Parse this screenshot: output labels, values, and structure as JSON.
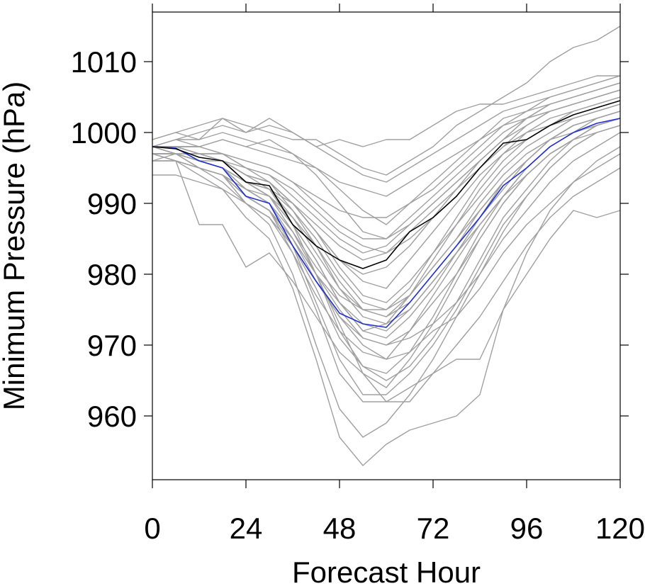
{
  "chart_data": {
    "type": "line",
    "xlabel": "Forecast Hour",
    "ylabel": "Minimum Pressure (hPa)",
    "xlim": [
      0,
      120
    ],
    "ylim": [
      951,
      1017
    ],
    "xticks": [
      0,
      24,
      48,
      72,
      96,
      120
    ],
    "yticks": [
      960,
      970,
      980,
      990,
      1000,
      1010
    ],
    "grid": false,
    "legend": "none",
    "x": [
      0,
      6,
      12,
      18,
      24,
      30,
      36,
      42,
      48,
      54,
      60,
      66,
      72,
      78,
      84,
      90,
      96,
      102,
      108,
      114,
      120
    ],
    "colors": {
      "ensemble": "#a0a0a0",
      "black_series": "#000000",
      "blue_series": "#1f2fd0"
    },
    "series": [
      {
        "color": "#1f2fd0",
        "values": [
          998,
          997.8,
          996,
          995,
          991,
          990,
          984,
          979,
          974.5,
          973,
          972.5,
          976,
          980,
          984,
          988,
          992.5,
          995,
          998,
          1000,
          1001.3,
          1002
        ]
      },
      {
        "color": "#000000",
        "values": [
          998,
          997.7,
          996.5,
          996,
          993,
          992.5,
          987,
          984,
          982,
          980.8,
          982,
          986,
          988,
          991,
          995,
          998.5,
          999,
          1001,
          1002.5,
          1003.5,
          1004.5
        ]
      },
      {
        "color": "#a0a0a0",
        "values": [
          998,
          999,
          998,
          999,
          998,
          997,
          996,
          995,
          993,
          992,
          991,
          993,
          995,
          997,
          999,
          1001,
          1002,
          1003,
          1004,
          1005,
          1006
        ]
      },
      {
        "color": "#a0a0a0",
        "values": [
          999,
          1000,
          999,
          1000,
          999,
          998,
          997,
          995,
          992,
          989,
          987,
          990,
          993,
          996,
          999,
          1002,
          1003,
          1004,
          1005,
          1006,
          1007
        ]
      },
      {
        "color": "#a0a0a0",
        "values": [
          997,
          997,
          996,
          995,
          993,
          992,
          990,
          987,
          984,
          982,
          983,
          986,
          989,
          992,
          995,
          998,
          1000,
          1001,
          1002,
          1003,
          1004
        ]
      },
      {
        "color": "#a0a0a0",
        "values": [
          998,
          998,
          997,
          996,
          994,
          993,
          990,
          986,
          982,
          979,
          978,
          982,
          986,
          990,
          994,
          997,
          999,
          1001,
          1002,
          1003,
          1004
        ]
      },
      {
        "color": "#a0a0a0",
        "values": [
          996,
          997,
          995,
          994,
          991,
          989,
          985,
          980,
          976,
          973,
          972,
          975,
          979,
          983,
          987,
          991,
          994,
          997,
          999,
          1001,
          1002
        ]
      },
      {
        "color": "#a0a0a0",
        "values": [
          998,
          997,
          996,
          995,
          992,
          990,
          986,
          981,
          977,
          975,
          974,
          977,
          981,
          985,
          989,
          993,
          996,
          999,
          1001,
          1002,
          1003
        ]
      },
      {
        "color": "#a0a0a0",
        "values": [
          997,
          996,
          995,
          993,
          990,
          988,
          983,
          977,
          972,
          969,
          968,
          972,
          977,
          982,
          987,
          991,
          995,
          998,
          1000,
          1002,
          1003
        ]
      },
      {
        "color": "#a0a0a0",
        "values": [
          998,
          998,
          997,
          997,
          995,
          994,
          991,
          988,
          985,
          983,
          984,
          987,
          990,
          993,
          996,
          999,
          1001,
          1003,
          1004,
          1005,
          1006
        ]
      },
      {
        "color": "#a0a0a0",
        "values": [
          997,
          996,
          987,
          987,
          981,
          983,
          979,
          974,
          969,
          966,
          964,
          968,
          973,
          979,
          985,
          990,
          994,
          997,
          999,
          1000,
          1001
        ]
      },
      {
        "color": "#a0a0a0",
        "values": [
          998,
          997,
          995,
          994,
          990,
          987,
          980,
          970,
          961,
          957,
          959,
          963,
          968,
          974,
          980,
          986,
          991,
          995,
          998,
          1000,
          1001
        ]
      },
      {
        "color": "#a0a0a0",
        "values": [
          997,
          996,
          994,
          992,
          988,
          985,
          978,
          968,
          957,
          953,
          956,
          958,
          959,
          960,
          963,
          975,
          983,
          989,
          993,
          996,
          998
        ]
      },
      {
        "color": "#a0a0a0",
        "values": [
          996,
          996,
          995,
          994,
          992,
          990,
          985,
          979,
          974,
          970,
          968,
          969,
          972,
          974,
          978,
          983,
          987,
          990,
          993,
          995,
          997
        ]
      },
      {
        "color": "#a0a0a0",
        "values": [
          998,
          998,
          997,
          996,
          993,
          991,
          986,
          980,
          973,
          966,
          962,
          962,
          966,
          970,
          974,
          979,
          984,
          988,
          991,
          993,
          995
        ]
      },
      {
        "color": "#a0a0a0",
        "values": [
          997,
          997,
          996,
          995,
          993,
          992,
          989,
          985,
          980,
          976,
          975,
          977,
          981,
          985,
          990,
          994,
          997,
          999,
          1000,
          1001,
          1002
        ]
      },
      {
        "color": "#a0a0a0",
        "values": [
          998,
          999,
          1000,
          1001,
          1000,
          1001,
          1000,
          998,
          996,
          994,
          993,
          995,
          997,
          999,
          1001,
          1003,
          1004,
          1005,
          1006,
          1007,
          1008
        ]
      },
      {
        "color": "#a0a0a0",
        "values": [
          998,
          999,
          999,
          1002,
          1000,
          1002,
          1000,
          998,
          999,
          998,
          999,
          999,
          1001,
          1003,
          1004,
          1004,
          1005,
          1006,
          1007,
          1008,
          1008
        ]
      },
      {
        "color": "#a0a0a0",
        "values": [
          998,
          998,
          998,
          999,
          998,
          999,
          997,
          994,
          990,
          986,
          985,
          988,
          991,
          994,
          997,
          1000,
          1002,
          1004,
          1005,
          1006,
          1007
        ]
      },
      {
        "color": "#a0a0a0",
        "values": [
          997,
          997,
          996,
          996,
          994,
          993,
          990,
          986,
          981,
          977,
          976,
          979,
          983,
          987,
          991,
          995,
          998,
          1000,
          1002,
          1003,
          1004
        ]
      },
      {
        "color": "#a0a0a0",
        "values": [
          999,
          1000,
          1001,
          1002,
          1001,
          1000,
          999,
          999,
          997,
          995,
          994,
          996,
          998,
          1001,
          1003,
          1005,
          1007,
          1010,
          1012,
          1013,
          1015
        ]
      },
      {
        "color": "#a0a0a0",
        "values": [
          997,
          996,
          995,
          994,
          991,
          989,
          984,
          978,
          971,
          967,
          966,
          969,
          974,
          980,
          986,
          991,
          995,
          998,
          1000,
          1001,
          1002
        ]
      },
      {
        "color": "#a0a0a0",
        "values": [
          998,
          997,
          996,
          995,
          993,
          991,
          987,
          982,
          976,
          972,
          973,
          977,
          982,
          987,
          992,
          996,
          999,
          1001,
          1003,
          1004,
          1005
        ]
      },
      {
        "color": "#a0a0a0",
        "values": [
          996,
          996,
          995,
          994,
          992,
          991,
          988,
          984,
          979,
          975,
          974,
          976,
          980,
          984,
          989,
          993,
          996,
          999,
          1001,
          1002,
          1003
        ]
      },
      {
        "color": "#a0a0a0",
        "values": [
          997,
          997,
          997,
          996,
          995,
          994,
          992,
          989,
          986,
          984,
          983,
          985,
          988,
          991,
          995,
          998,
          1001,
          1003,
          1004,
          1005,
          1006
        ]
      },
      {
        "color": "#a0a0a0",
        "values": [
          998,
          998,
          997,
          997,
          995,
          993,
          989,
          984,
          978,
          974,
          973,
          975,
          979,
          983,
          988,
          992,
          996,
          999,
          1001,
          1002,
          1003
        ]
      },
      {
        "color": "#a0a0a0",
        "values": [
          998,
          997,
          996,
          995,
          992,
          990,
          984,
          976,
          968,
          963,
          963,
          966,
          970,
          975,
          981,
          987,
          991,
          995,
          998,
          1000,
          1001
        ]
      },
      {
        "color": "#a0a0a0",
        "values": [
          997,
          997,
          996,
          995,
          993,
          991,
          987,
          982,
          976,
          972,
          971,
          974,
          978,
          983,
          988,
          993,
          996,
          999,
          1001,
          1002,
          1003
        ]
      },
      {
        "color": "#a0a0a0",
        "values": [
          998,
          998,
          998,
          997,
          996,
          995,
          993,
          990,
          987,
          985,
          985,
          987,
          990,
          993,
          996,
          999,
          1002,
          1004,
          1005,
          1006,
          1007
        ]
      },
      {
        "color": "#a0a0a0",
        "values": [
          997,
          996,
          995,
          994,
          991,
          989,
          985,
          980,
          975,
          971,
          970,
          972,
          976,
          980,
          985,
          990,
          994,
          997,
          999,
          1001,
          1002
        ]
      },
      {
        "color": "#a0a0a0",
        "values": [
          997,
          997,
          996,
          995,
          993,
          992,
          988,
          983,
          978,
          975,
          975,
          978,
          983,
          988,
          993,
          997,
          1000,
          1002,
          1003,
          1004,
          1005
        ]
      },
      {
        "color": "#a0a0a0",
        "values": [
          998,
          997,
          997,
          996,
          994,
          993,
          990,
          986,
          982,
          980,
          981,
          984,
          988,
          992,
          996,
          999,
          1002,
          1003,
          1004,
          1005,
          1006
        ]
      },
      {
        "color": "#a0a0a0",
        "values": [
          994,
          994,
          993,
          992,
          990,
          988,
          984,
          979,
          974,
          971,
          970,
          971,
          973,
          976,
          980,
          985,
          989,
          993,
          996,
          998,
          1000
        ]
      },
      {
        "color": "#a0a0a0",
        "values": [
          998,
          998,
          997,
          996,
          994,
          992,
          987,
          980,
          972,
          967,
          965,
          967,
          971,
          976,
          982,
          988,
          992,
          996,
          999,
          1001,
          1002
        ]
      },
      {
        "color": "#a0a0a0",
        "values": [
          998,
          997,
          996,
          995,
          991,
          989,
          983,
          975,
          966,
          962,
          962,
          964,
          966,
          968,
          968,
          975,
          980,
          985,
          989,
          988,
          989
        ]
      },
      {
        "color": "#a0a0a0",
        "values": [
          998,
          998,
          998,
          997,
          996,
          995,
          993,
          991,
          989,
          988,
          988,
          990,
          992,
          995,
          998,
          1001,
          1003,
          1005,
          1006,
          1007,
          1008
        ]
      }
    ]
  }
}
